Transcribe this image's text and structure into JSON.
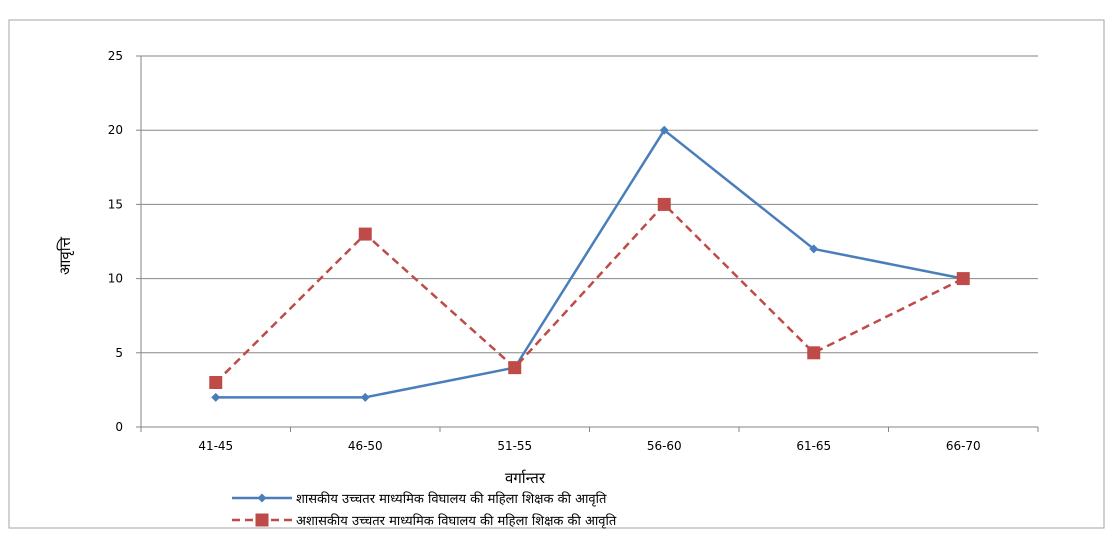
{
  "chart_data": {
    "type": "line",
    "title": "",
    "xlabel": "वर्गान्तर",
    "ylabel": "आवृत्ति",
    "categories": [
      "41-45",
      "46-50",
      "51-55",
      "56-60",
      "61-65",
      "66-70"
    ],
    "ylim": [
      0,
      25
    ],
    "yticks": [
      0,
      5,
      10,
      15,
      20,
      25
    ],
    "grid": true,
    "legend_position": "bottom",
    "series": [
      {
        "name": "शासकीय उच्चतर माध्यमिक विघालय की महिला शिक्षक की आवृति",
        "values": [
          2,
          2,
          4,
          20,
          12,
          10
        ],
        "color": "#4a7ebb",
        "line_style": "solid",
        "marker": "diamond"
      },
      {
        "name": "अशासकीय उच्चतर माध्यमिक विघालय की महिला शिक्षक की आवृति",
        "values": [
          3,
          13,
          4,
          15,
          5,
          10
        ],
        "color": "#be4b48",
        "line_style": "dashed",
        "marker": "square"
      }
    ]
  }
}
